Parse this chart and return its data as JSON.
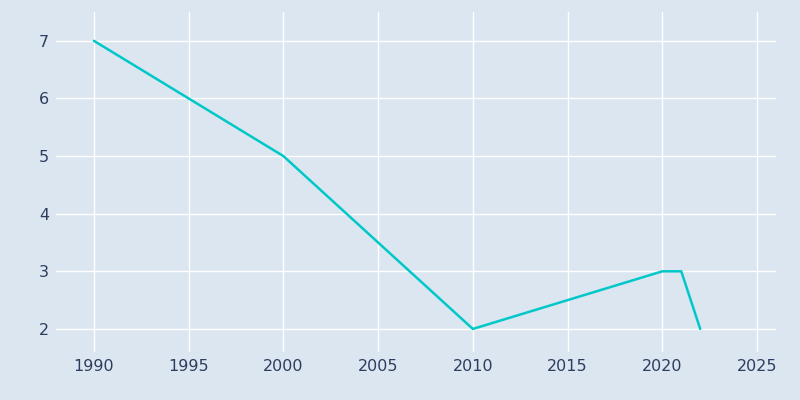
{
  "x": [
    1990,
    2000,
    2010,
    2020,
    2021,
    2022
  ],
  "y": [
    7,
    5,
    2,
    3,
    3,
    2
  ],
  "line_color": "#00c8c8",
  "background_color": "#dce6f0",
  "xlim": [
    1988,
    2026
  ],
  "ylim": [
    1.6,
    7.5
  ],
  "xticks": [
    1990,
    1995,
    2000,
    2005,
    2010,
    2015,
    2020,
    2025
  ],
  "yticks": [
    2,
    3,
    4,
    5,
    6,
    7
  ],
  "grid_color": "#ffffff",
  "tick_color": "#2e3d5f",
  "linewidth": 1.8,
  "tick_labelsize": 11.5
}
